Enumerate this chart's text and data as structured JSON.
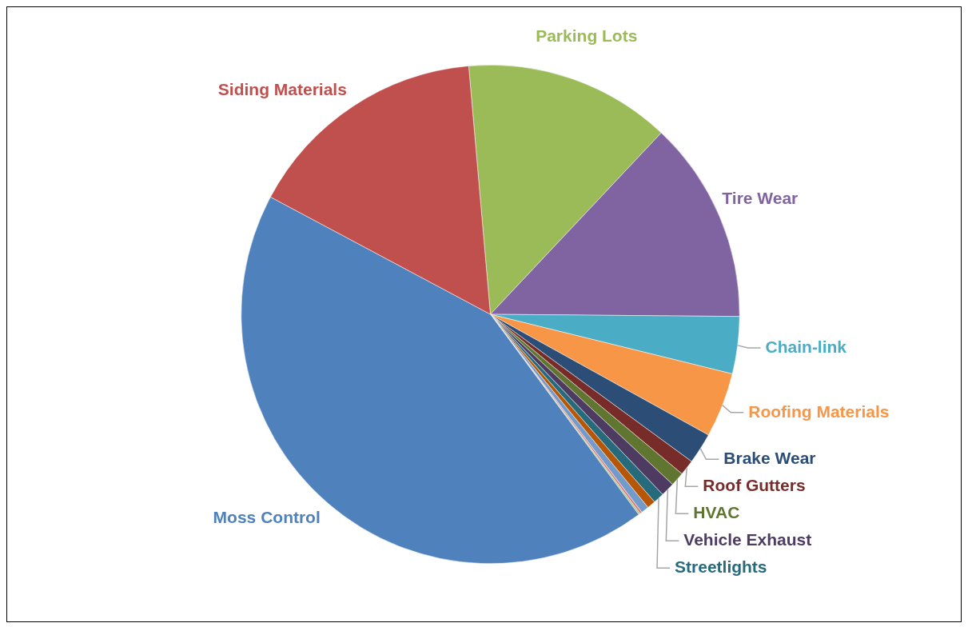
{
  "chart_data": {
    "type": "pie",
    "categories": [
      "Parking Lots",
      "Tire Wear",
      "Chain-link",
      "Roofing Materials",
      "Brake Wear",
      "Roof Gutters",
      "HVAC",
      "Vehicle Exhaust",
      "Streetlights",
      null,
      null,
      null,
      null,
      "Moss Control",
      "Siding Materials"
    ],
    "values": [
      13.4,
      13.1,
      3.7,
      4.2,
      2.0,
      1.0,
      0.9,
      0.9,
      0.7,
      0.55,
      0.5,
      0.15,
      0.1,
      42.9,
      15.8
    ],
    "colors": [
      "#9bbb59",
      "#8064a2",
      "#4bacc6",
      "#f79646",
      "#2c4d75",
      "#772c2a",
      "#5f7530",
      "#4d3b62",
      "#276a7c",
      "#b65708",
      "#729aca",
      "#d9827f",
      "#a5c480",
      "#4f81bd",
      "#c0504d"
    ],
    "legend": false
  }
}
